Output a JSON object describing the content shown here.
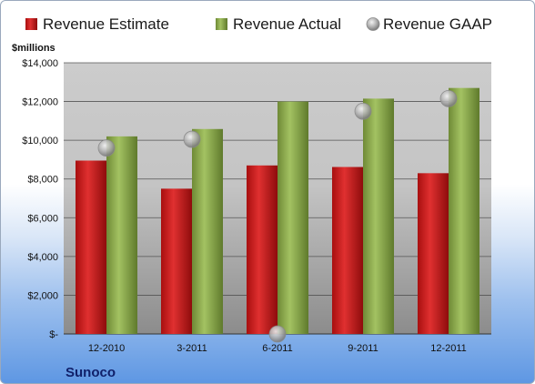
{
  "company": "Sunoco",
  "chart_data": {
    "type": "bar",
    "unit_label": "$millions",
    "categories": [
      "12-2010",
      "3-2011",
      "6-2011",
      "9-2011",
      "12-2011"
    ],
    "series": [
      {
        "name": "Revenue Estimate",
        "kind": "bar",
        "color": "#cc1f1f",
        "values": [
          8950,
          7500,
          8700,
          8620,
          8300
        ]
      },
      {
        "name": "Revenue Actual",
        "kind": "bar",
        "color": "#8fac4e",
        "values": [
          10200,
          10580,
          12000,
          12150,
          12700
        ]
      },
      {
        "name": "Revenue GAAP",
        "kind": "point",
        "color": "#a8a8a8",
        "values": [
          9600,
          10050,
          0,
          11500,
          12150
        ]
      }
    ],
    "ylim": [
      0,
      14000
    ],
    "yticks": [
      0,
      2000,
      4000,
      6000,
      8000,
      10000,
      12000,
      14000
    ],
    "ytick_labels": [
      "$-",
      "$2,000",
      "$4,000",
      "$6,000",
      "$8,000",
      "$10,000",
      "$12,000",
      "$14,000"
    ],
    "grid": true,
    "legend": "top"
  }
}
